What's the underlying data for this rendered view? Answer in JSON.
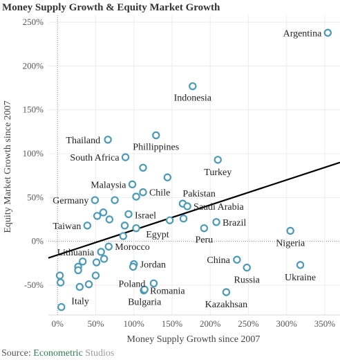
{
  "chart_data": {
    "type": "scatter",
    "title": "Money Supply Growth & Equity Market Growth",
    "xlabel": "Money Supply Growth since 2007",
    "ylabel": "Equity Market Growth since 2007",
    "xlim": [
      -0.12,
      3.7
    ],
    "ylim": [
      -0.84,
      2.58
    ],
    "x_ticks": [
      0,
      0.5,
      1,
      1.5,
      2,
      2.5,
      3,
      3.5
    ],
    "x_tick_labels": [
      "0%",
      "50%",
      "100%",
      "150%",
      "200%",
      "250%",
      "300%",
      "350%"
    ],
    "y_ticks": [
      -0.5,
      0,
      0.5,
      1,
      1.5,
      2,
      2.5
    ],
    "y_tick_labels": [
      "-50%",
      "0%",
      "50%",
      "100%",
      "150%",
      "200%",
      "250%"
    ],
    "grid": true,
    "marker_color": "#4a9bb8",
    "trend_line": {
      "x": [
        -0.12,
        3.7
      ],
      "y": [
        -0.19,
        0.9
      ],
      "color": "#000000"
    },
    "points": [
      {
        "label": "Argentina",
        "x": 3.54,
        "y": 2.38
      },
      {
        "label": "Indonesia",
        "x": 1.77,
        "y": 1.77
      },
      {
        "label": "Thailand",
        "x": 0.66,
        "y": 1.16
      },
      {
        "label": "Phillippines",
        "x": 1.29,
        "y": 1.21
      },
      {
        "label": "South Africa",
        "x": 0.89,
        "y": 0.96
      },
      {
        "label": "Turkey",
        "x": 2.1,
        "y": 0.93
      },
      {
        "label": "",
        "x": 1.12,
        "y": 0.84
      },
      {
        "label": "",
        "x": 1.44,
        "y": 0.73
      },
      {
        "label": "Malaysia",
        "x": 0.98,
        "y": 0.65
      },
      {
        "label": "Chile",
        "x": 1.12,
        "y": 0.56
      },
      {
        "label": "",
        "x": 1.03,
        "y": 0.51
      },
      {
        "label": "Pakistan",
        "x": 1.64,
        "y": 0.43
      },
      {
        "label": "Saudi Arabia",
        "x": 1.7,
        "y": 0.4
      },
      {
        "label": "Germany",
        "x": 0.49,
        "y": 0.47
      },
      {
        "label": "",
        "x": 0.75,
        "y": 0.47
      },
      {
        "label": "",
        "x": 0.6,
        "y": 0.33
      },
      {
        "label": "",
        "x": 0.52,
        "y": 0.29
      },
      {
        "label": "",
        "x": 0.68,
        "y": 0.25
      },
      {
        "label": "Israel",
        "x": 0.93,
        "y": 0.31
      },
      {
        "label": "",
        "x": 1.65,
        "y": 0.26
      },
      {
        "label": "",
        "x": 1.47,
        "y": 0.24
      },
      {
        "label": "Brazil",
        "x": 2.08,
        "y": 0.22
      },
      {
        "label": "Taiwan",
        "x": 0.39,
        "y": 0.18
      },
      {
        "label": "",
        "x": 0.88,
        "y": 0.18
      },
      {
        "label": "",
        "x": 1.03,
        "y": 0.15
      },
      {
        "label": "Egypt",
        "x": 0.86,
        "y": 0.06
      },
      {
        "label": "Peru",
        "x": 1.92,
        "y": 0.15
      },
      {
        "label": "Nigeria",
        "x": 3.05,
        "y": 0.12
      },
      {
        "label": "Morocco",
        "x": 0.67,
        "y": -0.06
      },
      {
        "label": "Lithuania",
        "x": 0.57,
        "y": -0.12
      },
      {
        "label": "",
        "x": 0.61,
        "y": -0.2
      },
      {
        "label": "",
        "x": 0.33,
        "y": -0.23
      },
      {
        "label": "",
        "x": 0.51,
        "y": -0.24
      },
      {
        "label": "",
        "x": 0.27,
        "y": -0.29
      },
      {
        "label": "",
        "x": 0.27,
        "y": -0.33
      },
      {
        "label": "Jordan",
        "x": 1.0,
        "y": -0.26
      },
      {
        "label": "",
        "x": 0.99,
        "y": -0.29
      },
      {
        "label": "China",
        "x": 2.35,
        "y": -0.21
      },
      {
        "label": "Russia",
        "x": 2.48,
        "y": -0.3
      },
      {
        "label": "Ukraine",
        "x": 3.18,
        "y": -0.27
      },
      {
        "label": "",
        "x": 0.03,
        "y": -0.39
      },
      {
        "label": "",
        "x": 0.5,
        "y": -0.39
      },
      {
        "label": "",
        "x": 0.04,
        "y": -0.47
      },
      {
        "label": "Poland",
        "x": 1.26,
        "y": -0.48
      },
      {
        "label": "",
        "x": 0.41,
        "y": -0.49
      },
      {
        "label": "Romania",
        "x": 1.13,
        "y": -0.56
      },
      {
        "label": "Italy",
        "x": 0.29,
        "y": -0.52
      },
      {
        "label": "Bulgaria",
        "x": 1.14,
        "y": -0.55
      },
      {
        "label": "Kazakhsan",
        "x": 2.21,
        "y": -0.58
      },
      {
        "label": "",
        "x": 0.05,
        "y": -0.75
      }
    ]
  },
  "source": {
    "prefix": "Source: ",
    "brand": "Econometric",
    "brand2": " Studios"
  }
}
